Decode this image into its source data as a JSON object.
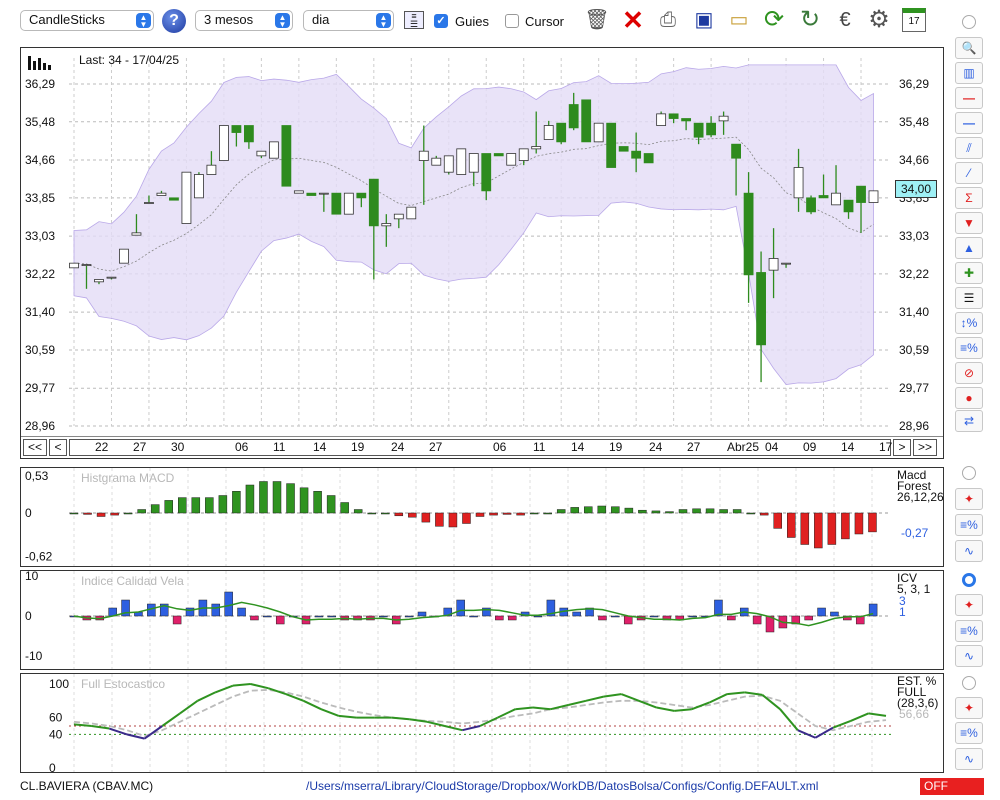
{
  "toolbar": {
    "chart_type": "CandleSticks",
    "help": "?",
    "period": "3 mesos",
    "interval": "dia",
    "guides_label": "Guies",
    "guides_checked": true,
    "cursor_label": "Cursor",
    "cursor_checked": false,
    "icons": [
      "grid-icon",
      "trash-icon",
      "delete-icon",
      "print-icon",
      "save-icon",
      "open-folder-icon",
      "refresh-icon",
      "sync-icon",
      "currency-icon",
      "gear-icon",
      "calendar-icon"
    ],
    "calendar_day": "17"
  },
  "price_panel": {
    "info": "Last: 34 - 17/04/25",
    "y_ticks": [
      "36,29",
      "35,48",
      "34,66",
      "33,85",
      "33,03",
      "32,22",
      "31,40",
      "30,59",
      "29,77",
      "28,96"
    ],
    "current_price": "34,00",
    "nav_left": [
      "<<",
      "<"
    ],
    "nav_right": [
      ">",
      ">>"
    ],
    "x_labels": [
      "22",
      "27",
      "30",
      "06",
      "11",
      "14",
      "19",
      "24",
      "27",
      "06",
      "11",
      "14",
      "19",
      "24",
      "27",
      "Abr25",
      "04",
      "09",
      "14",
      "17"
    ]
  },
  "macd_panel": {
    "title": "Histgrama MACD",
    "y_ticks": [
      "0,53",
      "0",
      "-0,62"
    ],
    "legend_1": "Macd",
    "legend_2": "Forest",
    "legend_3": "26,12,26",
    "value": "-0,27"
  },
  "icv_panel": {
    "title": "Indice Calidad Vela",
    "y_ticks": [
      "10",
      "0",
      "-10"
    ],
    "legend_1": "ICV",
    "legend_2": "5, 3, 1",
    "value_1": "3",
    "value_2": "1"
  },
  "stoch_panel": {
    "title": "Full Estocastico",
    "y_ticks": [
      "100",
      "60",
      "40",
      "0"
    ],
    "legend_1": "EST. %",
    "legend_2": "FULL",
    "legend_3": "(28,3,6)",
    "value": "56,66"
  },
  "status": {
    "ticker": "CL.BAVIERA (CBAV.MC)",
    "path": "/Users/mserra/Library/CloudStorage/Dropbox/WorkDB/DatosBolsa/Configs/Config.DEFAULT.xml",
    "off": "OFF"
  },
  "colors": {
    "up": "#ffffff",
    "down": "#2e8b1e",
    "band": "#e4dcf6",
    "bear": "#e02020",
    "bull": "#2f9320",
    "blue": "#2d5fe0",
    "pink": "#e0206a"
  },
  "chart_data": [
    {
      "type": "candlestick",
      "y_range": [
        28.96,
        36.7
      ],
      "candles": [
        [
          32.35,
          32.45,
          32.45,
          32.35
        ],
        [
          32.42,
          32.42,
          32.25,
          31.9
        ],
        [
          32.05,
          32.1,
          32.05,
          32.0
        ],
        [
          32.15,
          32.15,
          32.1,
          32.1
        ],
        [
          32.45,
          32.75,
          32.7,
          32.45
        ],
        [
          33.05,
          33.1,
          33.5,
          33.05
        ],
        [
          33.75,
          33.75,
          33.9,
          33.75
        ],
        [
          33.9,
          33.95,
          34.0,
          33.9
        ],
        [
          33.85,
          33.8,
          33.85,
          33.8
        ],
        [
          33.3,
          34.4,
          34.4,
          33.3
        ],
        [
          33.85,
          34.35,
          34.4,
          33.85
        ],
        [
          34.35,
          34.55,
          34.85,
          34.35
        ],
        [
          34.65,
          35.4,
          35.4,
          34.65
        ],
        [
          35.4,
          35.25,
          35.4,
          34.95
        ],
        [
          35.4,
          35.05,
          35.4,
          34.9
        ],
        [
          34.75,
          34.85,
          34.75,
          34.7
        ],
        [
          34.7,
          35.05,
          35.05,
          34.7
        ],
        [
          35.4,
          34.1,
          35.4,
          34.1
        ],
        [
          33.95,
          34.0,
          33.95,
          33.95
        ],
        [
          33.95,
          33.9,
          33.95,
          33.9
        ],
        [
          33.95,
          33.95,
          33.95,
          33.55
        ],
        [
          33.95,
          33.5,
          33.95,
          33.5
        ],
        [
          33.5,
          33.95,
          33.95,
          33.5
        ],
        [
          33.95,
          33.85,
          33.95,
          33.65
        ],
        [
          34.25,
          33.25,
          34.25,
          32.1
        ],
        [
          33.25,
          33.3,
          33.5,
          32.8
        ],
        [
          33.4,
          33.5,
          33.5,
          33.2
        ],
        [
          33.4,
          33.65,
          33.65,
          33.4
        ],
        [
          34.65,
          34.85,
          35.4,
          33.7
        ],
        [
          34.55,
          34.7,
          34.75,
          34.55
        ],
        [
          34.4,
          34.75,
          34.75,
          34.35
        ],
        [
          34.35,
          34.9,
          34.9,
          34.35
        ],
        [
          34.4,
          34.8,
          34.8,
          34.1
        ],
        [
          34.8,
          34.0,
          34.8,
          33.8
        ],
        [
          34.8,
          34.75,
          34.8,
          34.75
        ],
        [
          34.55,
          34.8,
          34.8,
          34.55
        ],
        [
          34.65,
          34.9,
          34.9,
          34.55
        ],
        [
          34.9,
          34.95,
          35.7,
          34.8
        ],
        [
          35.1,
          35.4,
          35.5,
          35.1
        ],
        [
          35.45,
          35.05,
          35.45,
          35.0
        ],
        [
          35.85,
          35.35,
          36.1,
          35.3
        ],
        [
          35.95,
          35.05,
          35.95,
          35.05
        ],
        [
          35.05,
          35.45,
          35.45,
          35.05
        ],
        [
          35.45,
          34.5,
          35.45,
          34.5
        ],
        [
          34.95,
          34.85,
          34.95,
          34.85
        ],
        [
          34.85,
          34.7,
          35.25,
          34.4
        ],
        [
          34.8,
          34.6,
          34.8,
          34.6
        ],
        [
          35.4,
          35.65,
          35.7,
          35.4
        ],
        [
          35.65,
          35.55,
          35.65,
          35.45
        ],
        [
          35.55,
          35.5,
          35.55,
          35.3
        ],
        [
          35.45,
          35.15,
          35.45,
          35.0
        ],
        [
          35.45,
          35.2,
          35.6,
          35.15
        ],
        [
          35.5,
          35.6,
          35.7,
          35.2
        ],
        [
          35.0,
          34.7,
          35.0,
          33.9
        ],
        [
          33.95,
          32.2,
          34.4,
          31.6
        ],
        [
          32.25,
          30.7,
          32.7,
          29.9
        ],
        [
          32.3,
          32.55,
          33.2,
          31.7
        ],
        [
          32.45,
          32.45,
          32.45,
          32.35
        ],
        [
          33.85,
          34.5,
          34.9,
          33.55
        ],
        [
          33.85,
          33.55,
          33.9,
          33.5
        ],
        [
          33.9,
          33.85,
          34.35,
          33.9
        ],
        [
          33.7,
          33.95,
          34.55,
          33.7
        ],
        [
          33.8,
          33.55,
          33.8,
          33.4
        ],
        [
          34.1,
          33.75,
          33.55,
          33.1
        ],
        [
          33.75,
          34.0,
          34.0,
          33.75
        ]
      ]
    },
    {
      "type": "bar",
      "name": "Histgrama MACD",
      "range": [
        -0.62,
        0.53
      ],
      "values": [
        0,
        -0.02,
        -0.05,
        -0.03,
        0,
        0.05,
        0.12,
        0.18,
        0.22,
        0.22,
        0.22,
        0.25,
        0.31,
        0.4,
        0.45,
        0.45,
        0.42,
        0.36,
        0.31,
        0.25,
        0.15,
        0.05,
        0,
        0,
        -0.04,
        -0.06,
        -0.13,
        -0.19,
        -0.2,
        -0.15,
        -0.05,
        -0.03,
        -0.02,
        -0.03,
        0,
        0,
        0.05,
        0.08,
        0.09,
        0.1,
        0.09,
        0.07,
        0.04,
        0.03,
        0.02,
        0.05,
        0.06,
        0.06,
        0.05,
        0.05,
        0,
        -0.03,
        -0.22,
        -0.35,
        -0.45,
        -0.5,
        -0.45,
        -0.37,
        -0.3,
        -0.27
      ]
    },
    {
      "type": "bar",
      "name": "Indice Calidad Vela",
      "range": [
        -10,
        10
      ],
      "values": [
        0,
        -1,
        -1,
        2,
        4,
        1,
        3,
        3,
        -2,
        2,
        4,
        3,
        6,
        2,
        -1,
        0,
        -2,
        0,
        -2,
        0,
        0,
        -1,
        -1,
        -1,
        0,
        -2,
        0,
        1,
        0,
        2,
        4,
        0,
        2,
        -1,
        -1,
        1,
        0,
        4,
        2,
        1,
        2,
        -1,
        0,
        -2,
        -1,
        0,
        -1,
        -1,
        0,
        0,
        4,
        -1,
        2,
        -2,
        -4,
        -3,
        -2,
        -1,
        2,
        1,
        -1,
        -2,
        3
      ]
    },
    {
      "type": "line",
      "name": "Full Estocastico",
      "range": [
        0,
        100
      ],
      "series": [
        {
          "values": [
            52,
            50,
            47,
            40,
            35,
            50,
            65,
            80,
            90,
            98,
            100,
            95,
            88,
            80,
            70,
            62,
            60,
            60,
            60,
            58,
            55,
            50,
            45,
            50,
            60,
            70,
            72,
            70,
            75,
            80,
            85,
            88,
            80,
            72,
            68,
            70,
            78,
            88,
            90,
            87,
            70,
            45,
            36,
            48,
            56,
            65,
            62
          ]
        },
        {
          "values": [
            55,
            53,
            50,
            45,
            38,
            45,
            55,
            65,
            75,
            85,
            92,
            93,
            90,
            85,
            78,
            72,
            67,
            63,
            60,
            58,
            56,
            55,
            53,
            55,
            58,
            62,
            65,
            70,
            72,
            75,
            78,
            80,
            80,
            78,
            75,
            72,
            75,
            80,
            85,
            86,
            80,
            65,
            50,
            45,
            50,
            55,
            57
          ]
        }
      ]
    }
  ]
}
